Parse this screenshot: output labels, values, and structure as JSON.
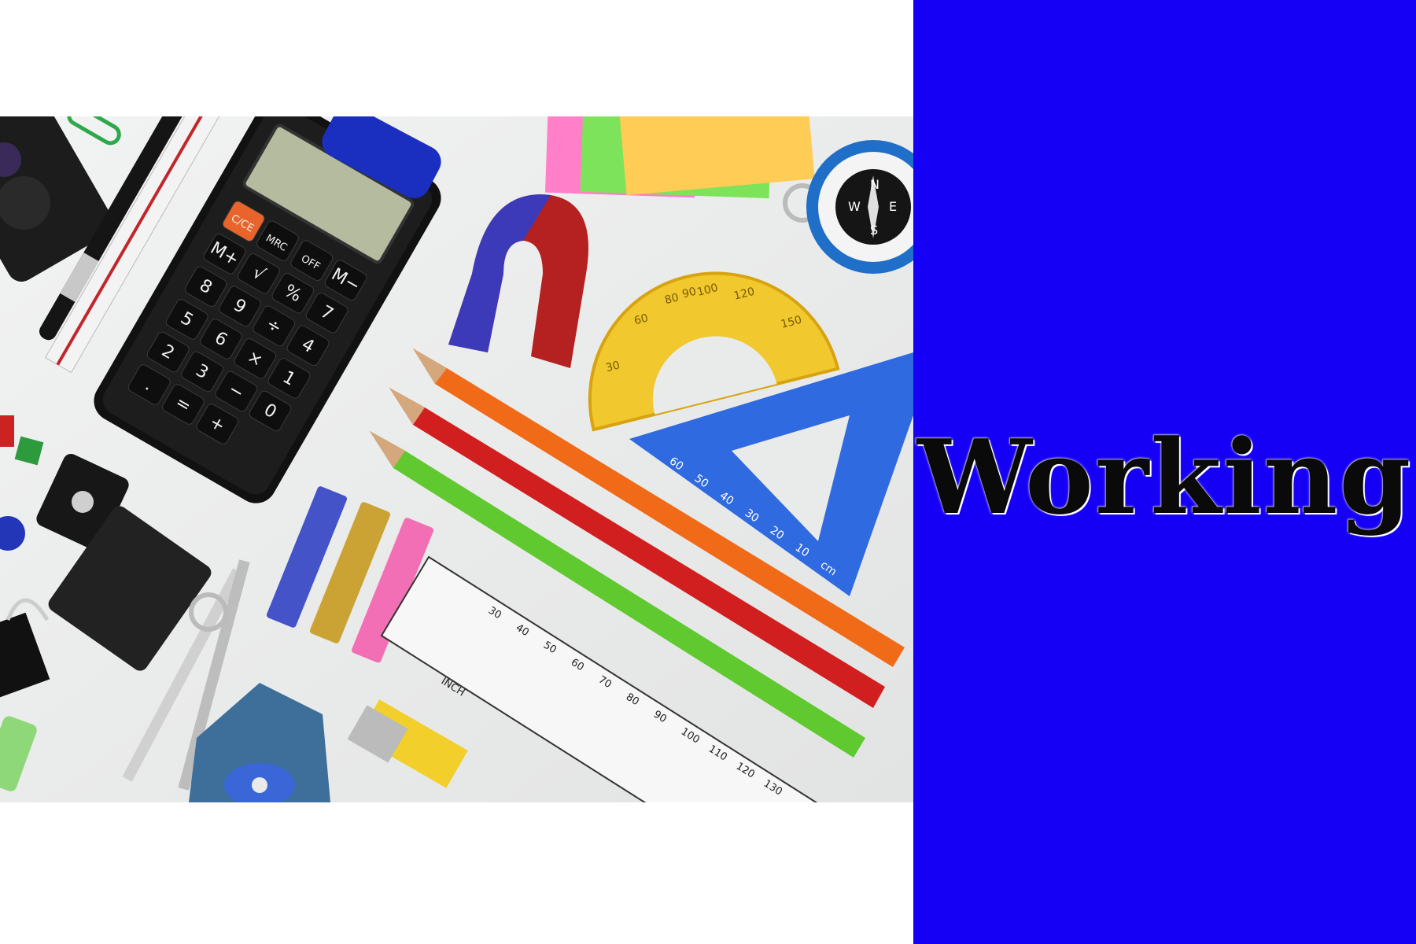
{
  "title": {
    "text": "Working"
  },
  "colors": {
    "panel_background": "#1500f5",
    "page_background": "#ffffff",
    "title_text": "#0a0a0a",
    "photo_background": "#e9eaea"
  },
  "illustration": {
    "subject": "school stationery flat lay",
    "calculator_keys": [
      "C/CE",
      "MRC",
      "OFF",
      "M−",
      "M+",
      "√",
      "%",
      "7",
      "8",
      "9",
      "÷",
      "4",
      "5",
      "6",
      "×",
      "1",
      "2",
      "3",
      "−",
      "0",
      ".",
      "=",
      "+"
    ],
    "compass_letters": [
      "N",
      "E",
      "S",
      "W"
    ],
    "protractor_marks": [
      "90",
      "80",
      "100",
      "60",
      "120",
      "30",
      "150"
    ],
    "triangle_marks": [
      "60",
      "50",
      "40",
      "30",
      "20",
      "10",
      "cm"
    ],
    "ruler_marks": [
      "30",
      "40",
      "50",
      "60",
      "70",
      "80",
      "90",
      "100",
      "110",
      "120",
      "130"
    ],
    "ruler_label": "INCH"
  }
}
